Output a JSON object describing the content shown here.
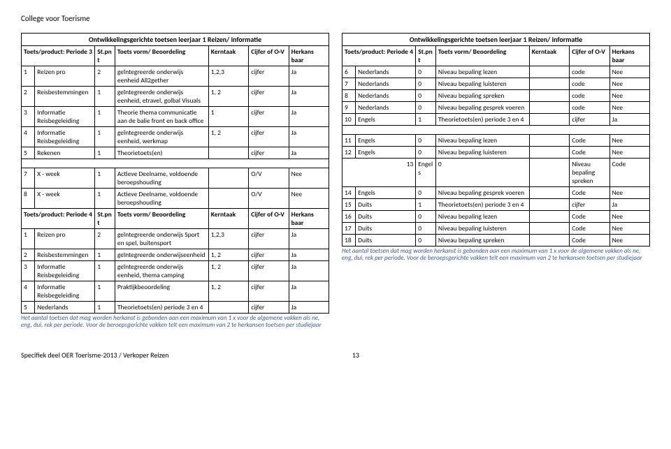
{
  "header": "College voor Toerisme",
  "footer": {
    "text": "Specifiek deel OER Toerisme-2013 / Verkoper Reizen",
    "page": "13"
  },
  "left": {
    "title": "Ontwikkelingsgerichte toetsen leerjaar 1 Reizen/ informatie",
    "note": "Het aantal toetsen dat mag worden herkanst is gebonden aan een maximum van 1 x voor de algemene vakken als ne, eng, dui, rek per periode. Voor de beroepsgerichte vakken telt een maximum van 2 te herkansen toetsen per studiejaar",
    "head1": {
      "c1": "Toets/product: Periode 3",
      "c2": "St.pnt",
      "c3": "Toets vorm/ Beoordeling",
      "c4": "Kerntaak",
      "c5": "Cijfer of O-V",
      "c6": "Herkans baar"
    },
    "rows1": [
      {
        "n": "1",
        "p": "Reizen pro",
        "s": "2",
        "v": "geïntegreerde onderwijs eenheid All2gether",
        "k": "1,2,3",
        "c": "cijfer",
        "h": "Ja"
      },
      {
        "n": "2",
        "p": "Reisbestemmingen",
        "s": "1",
        "v": "geïntegreerde onderwijs eenheid, etravel, golbal Visuals",
        "k": "1, 2",
        "c": "cijfer",
        "h": "Ja"
      },
      {
        "n": "3",
        "p": "Informatie Reisbegeleiding",
        "s": "1",
        "v": "Theorie thema communicatie aan de balie front en back office",
        "k": "1",
        "c": "cijfer",
        "h": "Ja"
      },
      {
        "n": "4",
        "p": "Informatie Reisbegeleiding",
        "s": "1",
        "v": "geïntegreerde onderwijs eenheid, werkmap",
        "k": "1, 2",
        "c": "cijfer",
        "h": "Ja"
      },
      {
        "n": "5",
        "p": "Rekenen",
        "s": "1",
        "v": "Theorietoets(en)",
        "k": "",
        "c": "cijfer",
        "h": "Ja"
      }
    ],
    "gap1": [
      {
        "n": "7",
        "p": "X - week",
        "s": "1",
        "v": "Actieve Deelname, voldoende beroepshouding",
        "k": "",
        "c": "O/V",
        "h": "Nee"
      },
      {
        "n": "8",
        "p": "X - week",
        "s": "1",
        "v": "Actieve Deelname, voldoende beroepshouding",
        "k": "",
        "c": "O/V",
        "h": "Nee"
      }
    ],
    "head2": {
      "c1": "Toets/product: Periode 4",
      "c2": "St.pnt",
      "c3": "Toets vorm/ Beoordeling",
      "c4": "Kerntaak",
      "c5": "Cijfer of O-V",
      "c6": "Herkans baar"
    },
    "rows2": [
      {
        "n": "1",
        "p": "Reizen pro",
        "s": "2",
        "v": "geïntegreerde onderwijs Sport en spel, buitensport",
        "k": "1,2,3",
        "c": "cijfer",
        "h": "Ja"
      },
      {
        "n": "2",
        "p": "Reisbestemmingen",
        "s": "1",
        "v": "geïntegreerde onderwijseenheid",
        "k": "1, 2",
        "c": "cijfer",
        "h": "Ja"
      },
      {
        "n": "3",
        "p": "Informatie Reisbegeleiding",
        "s": "1",
        "v": "geïntegreerde onderwijs eenheid, thema camping",
        "k": "1, 2",
        "c": "cijfer",
        "h": "Ja"
      },
      {
        "n": "4",
        "p": "Informatie Reisbegeleiding",
        "s": "1",
        "v": "Praktijkbeoordeling",
        "k": "1, 2",
        "c": "cijfer",
        "h": "Ja"
      },
      {
        "n": "5",
        "p": "Nederlands",
        "s": "1",
        "v": "Theorietoets(en) periode 3 en 4",
        "k": "",
        "c": "cijfer",
        "h": "Ja"
      }
    ]
  },
  "right": {
    "title": "Ontwikkelingsgerichte toetsen leerjaar 1 Reizen/ informatie",
    "note": "Het aantal toetsen dat mag worden herkanst is gebonden aan een maximum van 1 x voor de algemene vakken als ne, eng, dui, rek per periode. Voor de beroepsgerichte vakken telt een maximum van 2 te herkansen toetsen per studiejaar",
    "head": {
      "c1": "Toets/product: Periode 4",
      "c2": "St.pnt",
      "c3": "Toets vorm/ Beoordeling",
      "c4": "Kerntaak",
      "c5": "Cijfer of O-V",
      "c6": "Herkans baar"
    },
    "rows": [
      {
        "n": "6",
        "p": "Nederlands",
        "s": "0",
        "v": "Niveau bepaling lezen",
        "k": "",
        "c": "code",
        "h": "Nee"
      },
      {
        "n": "7",
        "p": "Nederlands",
        "s": "0",
        "v": "Niveau bepaling luisteren",
        "k": "",
        "c": "code",
        "h": "Nee"
      },
      {
        "n": "8",
        "p": "Nederlands",
        "s": "0",
        "v": "Niveau bepaling spreken",
        "k": "",
        "c": "code",
        "h": "Nee"
      },
      {
        "n": "9",
        "p": "Nederlands",
        "s": "0",
        "v": "Niveau bepaling gesprek voeren",
        "k": "",
        "c": "code",
        "h": "Nee"
      },
      {
        "n": "10",
        "p": "Engels",
        "s": "1",
        "v": "Theorietoets(en) periode 3 en 4",
        "k": "",
        "c": "cijfer",
        "h": "Ja"
      }
    ],
    "gap": [
      {
        "n": "11",
        "p": "Engels",
        "s": "0",
        "v": "Niveau bepaling lezen",
        "k": "",
        "c": "Code",
        "h": "Nee"
      },
      {
        "n": "12",
        "p": "Engels",
        "s": "0",
        "v": "Niveau bepaling luisteren",
        "k": "",
        "c": "Code",
        "h": "Nee"
      }
    ],
    "special": {
      "n": "13",
      "p": "Engels",
      "s": "0",
      "v": "",
      "k": "Niveau bepaling spreken",
      "c": "",
      "h": "Code"
    },
    "rows2": [
      {
        "n": "14",
        "p": "Engels",
        "s": "0",
        "v": "Niveau bepaling gesprek voeren",
        "k": "",
        "c": "Code",
        "h": "Nee"
      },
      {
        "n": "15",
        "p": "Duits",
        "s": "1",
        "v": "Theorietoets(en) periode 3 en 4",
        "k": "",
        "c": "cijfer",
        "h": "Ja"
      },
      {
        "n": "16",
        "p": "Duits",
        "s": "0",
        "v": "Niveau bepaling lezen",
        "k": "",
        "c": "Code",
        "h": "Nee"
      },
      {
        "n": "17",
        "p": "Duits",
        "s": "0",
        "v": "Niveau bepaling luisteren",
        "k": "",
        "c": "Code",
        "h": "Nee"
      },
      {
        "n": "18",
        "p": "Duits",
        "s": "0",
        "v": "Niveau bepaling spreken",
        "k": "",
        "c": "Code",
        "h": "Nee"
      }
    ]
  }
}
